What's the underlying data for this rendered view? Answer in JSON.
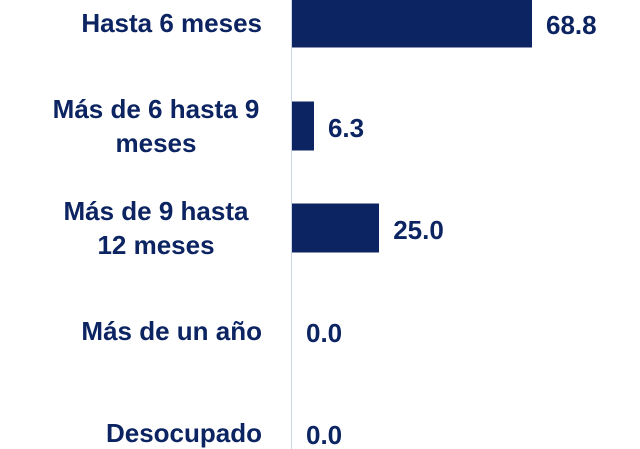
{
  "chart_data": {
    "type": "bar",
    "orientation": "horizontal",
    "categories": [
      "Hasta 6 meses",
      "Más de 6 hasta 9 meses",
      "Más de 9 hasta 12 meses",
      "Más de un año",
      "Desocupado"
    ],
    "values": [
      68.8,
      6.3,
      25.0,
      0.0,
      0.0
    ],
    "value_labels": [
      "68.8",
      "6.3",
      "25.0",
      "0.0",
      "0.0"
    ],
    "color": "#0c2461"
  }
}
